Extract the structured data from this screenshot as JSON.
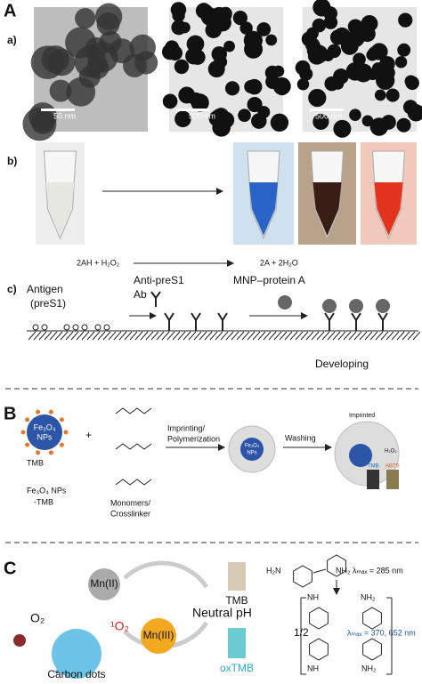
{
  "panel_a": {
    "label": "A",
    "sub_a": {
      "label": "a)",
      "scale_bars": [
        "50 nm",
        "500 nm",
        "500 nm"
      ]
    },
    "sub_b": {
      "label": "b)",
      "equation_left": "2AH + H₂O₂",
      "equation_right": "2A + 2H₂O"
    },
    "sub_c": {
      "label": "c)",
      "antigen": [
        "Antigen",
        "(preS1)"
      ],
      "antibody": [
        "Anti-preS1",
        "Ab"
      ],
      "mnp": "MNP–protein A",
      "developing": "Developing"
    }
  },
  "panel_b": {
    "label": "B",
    "particle": [
      "Fe₃O₄",
      "NPs"
    ],
    "tmb": "TMB",
    "caption": [
      "Fe₃O₄ NPs",
      "-TMB"
    ],
    "plus": "+",
    "monomers": [
      "Monomers/",
      "Crosslinker"
    ],
    "step1": [
      "Imprinting/",
      "Polymerization"
    ],
    "step2": "Washing",
    "product_particle": [
      "Fe₃O₄",
      "NPs"
    ],
    "imprinted": "Imprinted",
    "h2o2": "H₂O₂",
    "tmb_vial": "TMB",
    "abts_vial": "ABTS"
  },
  "panel_c": {
    "label": "C",
    "mn2": "Mn(II)",
    "mn3": "Mn(III)",
    "singlet_oxygen": "¹O₂",
    "o2": "O₂",
    "carbon_dots": "Carbon dots",
    "tmb": "TMB",
    "neutral_ph": "Neutral pH",
    "oxtmb": "oxTMB",
    "tmb_lambda": "λₘₐₓ = 285 nm",
    "oxtmb_lambda": "λₘₐₓ = 370, 652 nm",
    "half": "1/2",
    "amine_groups": [
      "H₂N",
      "NH₂",
      "NH",
      "NH₂",
      "NH₂",
      "NH"
    ]
  }
}
